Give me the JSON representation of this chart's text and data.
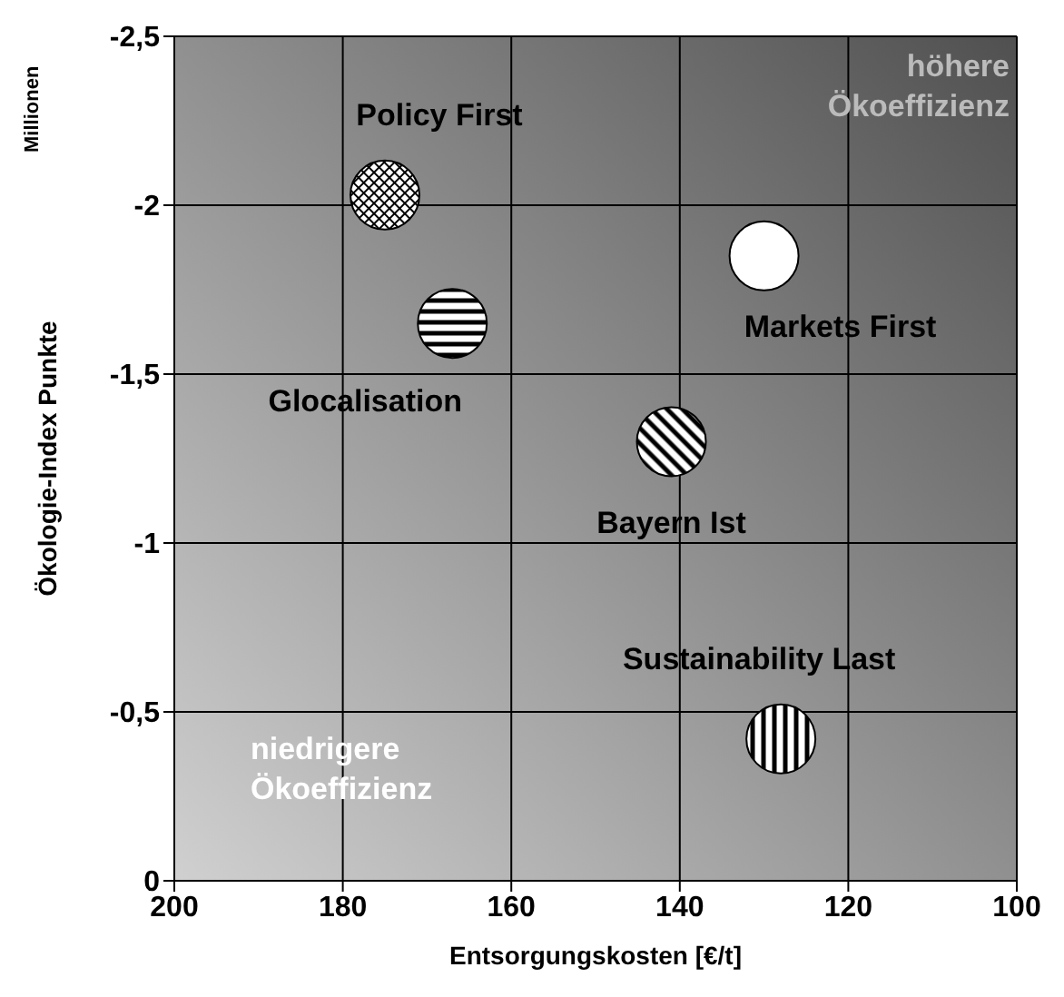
{
  "chart_data": {
    "type": "scatter",
    "xlabel": "Entsorgungskosten [€/t]",
    "ylabel": "Ökologie-Index Punkte",
    "annotations": [
      "Millionen",
      "höhere Ökoeffizienz",
      "niedrigere Ökoeffizienz"
    ],
    "xlim": [
      200,
      100
    ],
    "xticks": [
      200,
      180,
      160,
      140,
      120,
      100
    ],
    "ylim": [
      0,
      -2.5
    ],
    "yticks": [
      0,
      {
        "value": -0.5,
        "label": "-0,5"
      },
      -1,
      {
        "value": -1.5,
        "label": "-1,5"
      },
      -2,
      {
        "value": -2.5,
        "label": "-2,5"
      }
    ],
    "grid": true,
    "marker": "circle",
    "legend": false,
    "series": [
      {
        "name": "Policy First",
        "color": "#000000",
        "x": [
          175
        ],
        "values": [
          -2.03
        ]
      },
      {
        "name": "Markets First",
        "color": "#ffffff",
        "x": [
          130
        ],
        "values": [
          -1.85
        ]
      },
      {
        "name": "Glocalisation",
        "color": "#000000",
        "x": [
          167
        ],
        "values": [
          -1.65
        ]
      },
      {
        "name": "Bayern Ist",
        "color": "#000000",
        "x": [
          141
        ],
        "values": [
          -1.3
        ]
      },
      {
        "name": "Sustainability Last",
        "color": "#000000",
        "x": [
          128
        ],
        "values": [
          -0.42
        ]
      }
    ]
  }
}
